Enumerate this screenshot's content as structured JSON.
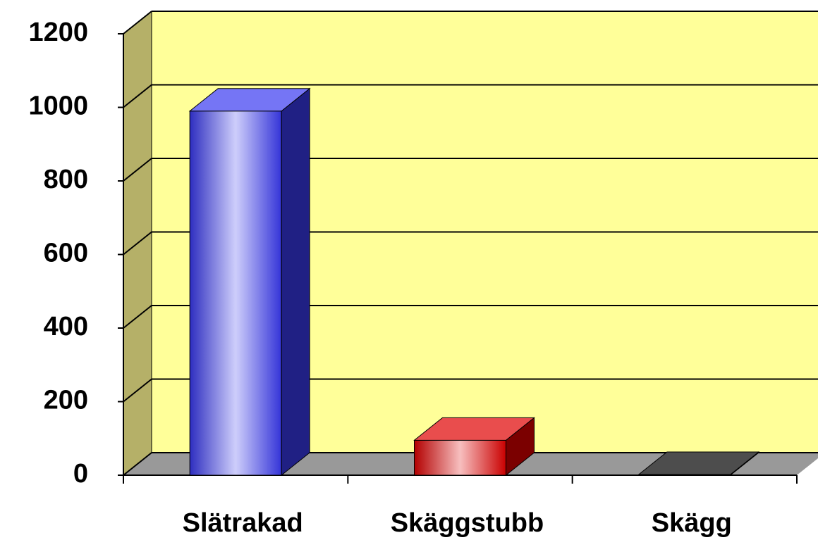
{
  "chart_data": {
    "type": "bar3d",
    "categories": [
      "Slätrakad",
      "Skäggstubb",
      "Skägg"
    ],
    "values": [
      990,
      95,
      2
    ],
    "colors": [
      "#3a3af0",
      "#e00000",
      "#000000"
    ],
    "ylim": [
      0,
      1200
    ],
    "yticks": [
      0,
      200,
      400,
      600,
      800,
      1000,
      1200
    ],
    "grid": true
  }
}
